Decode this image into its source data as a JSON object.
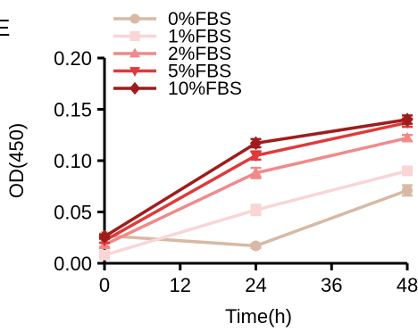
{
  "panel_label": "E",
  "chart_data": {
    "type": "line",
    "title": "",
    "xlabel": "Time(h)",
    "ylabel": "OD(450)",
    "x": [
      0,
      24,
      48
    ],
    "xlim": [
      0,
      48
    ],
    "ylim": [
      0,
      0.2
    ],
    "xticks": [
      0,
      12,
      24,
      36,
      48
    ],
    "yticks": [
      0.0,
      0.05,
      0.1,
      0.15,
      0.2
    ],
    "xtick_labels": [
      "0",
      "12",
      "24",
      "36",
      "48"
    ],
    "ytick_labels": [
      "0.00",
      "0.05",
      "0.10",
      "0.15",
      "0.20"
    ],
    "legend_position": "top-left",
    "grid": false,
    "series": [
      {
        "name": "0%FBS",
        "color": "#d7b9a5",
        "marker": "circle",
        "values": [
          0.027,
          0.017,
          0.071
        ],
        "errors": [
          0.002,
          0.002,
          0.005
        ]
      },
      {
        "name": "1%FBS",
        "color": "#fad5d5",
        "marker": "square",
        "values": [
          0.008,
          0.052,
          0.09
        ],
        "errors": [
          0.002,
          0.005,
          0.003
        ]
      },
      {
        "name": "2%FBS",
        "color": "#f08a8a",
        "marker": "triangle-up",
        "values": [
          0.018,
          0.088,
          0.122
        ],
        "errors": [
          0.002,
          0.005,
          0.003
        ]
      },
      {
        "name": "5%FBS",
        "color": "#e03a3a",
        "marker": "triangle-down",
        "values": [
          0.022,
          0.105,
          0.137
        ],
        "errors": [
          0.002,
          0.004,
          0.004
        ]
      },
      {
        "name": "10%FBS",
        "color": "#a01c1c",
        "marker": "diamond",
        "values": [
          0.026,
          0.117,
          0.14
        ],
        "errors": [
          0.002,
          0.004,
          0.004
        ]
      }
    ]
  }
}
